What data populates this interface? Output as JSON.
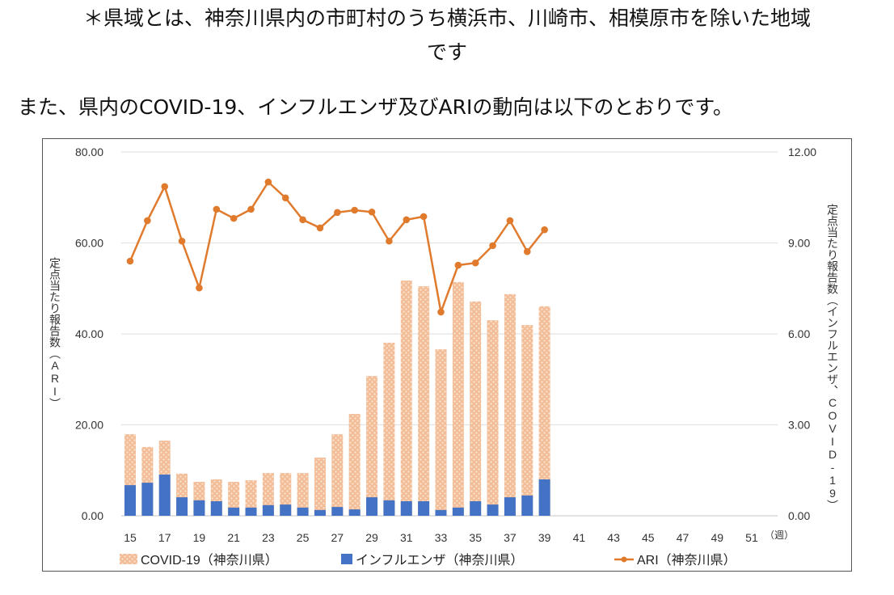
{
  "notes": {
    "line1": "＊県域とは、神奈川県内の市町村のうち横浜市、川崎市、相模原市を除いた地域",
    "line2": "です",
    "intro": "また、県内のCOVID-19、インフルエンザ及びARIの動向は以下のとおりです。"
  },
  "chart_data": {
    "type": "bar+line",
    "x": [
      15,
      16,
      17,
      18,
      19,
      20,
      21,
      22,
      23,
      24,
      25,
      26,
      27,
      28,
      29,
      30,
      31,
      32,
      33,
      34,
      35,
      36,
      37,
      38,
      39
    ],
    "x_ticks": [
      "15",
      "17",
      "19",
      "21",
      "23",
      "25",
      "27",
      "29",
      "31",
      "33",
      "35",
      "37",
      "39",
      "41",
      "43",
      "45",
      "47",
      "49",
      "51"
    ],
    "x_unit": "（週）",
    "xlim": [
      15,
      51
    ],
    "ylabel_left": "定点当たり報告数（ARI）",
    "ylabel_right": "定点当たり報告数（インフルエンザ、COVID-19）",
    "ylim_left": [
      0,
      80
    ],
    "ylim_right": [
      0,
      12
    ],
    "yticks_left": [
      "0.00",
      "20.00",
      "40.00",
      "60.00",
      "80.00"
    ],
    "yticks_right": [
      "0.00",
      "3.00",
      "6.00",
      "9.00",
      "12.00"
    ],
    "grid": true,
    "legend_position": "bottom",
    "series": [
      {
        "name": "COVID-19（神奈川県）",
        "type": "bar",
        "axis": "right",
        "color": "#f0b58c",
        "values": [
          2.69,
          2.27,
          2.48,
          1.39,
          1.12,
          1.2,
          1.12,
          1.17,
          1.41,
          1.41,
          1.41,
          1.92,
          2.69,
          3.36,
          4.61,
          5.71,
          7.76,
          7.57,
          5.49,
          7.71,
          7.07,
          6.45,
          7.31,
          6.29,
          6.91
        ]
      },
      {
        "name": "インフルエンザ（神奈川県）",
        "type": "bar",
        "axis": "right",
        "color": "#4472c4",
        "values": [
          1.01,
          1.09,
          1.36,
          0.61,
          0.51,
          0.48,
          0.27,
          0.27,
          0.35,
          0.37,
          0.27,
          0.19,
          0.29,
          0.21,
          0.61,
          0.51,
          0.48,
          0.48,
          0.19,
          0.27,
          0.48,
          0.37,
          0.61,
          0.67,
          1.2
        ]
      },
      {
        "name": "ARI（神奈川県）",
        "type": "line",
        "axis": "left",
        "color": "#e07b2e",
        "values": [
          56.0,
          64.9,
          72.4,
          60.4,
          50.1,
          67.4,
          65.4,
          67.4,
          73.4,
          69.9,
          65.1,
          63.3,
          66.7,
          67.2,
          66.8,
          60.4,
          65.1,
          65.8,
          44.8,
          55.1,
          55.6,
          59.4,
          64.9,
          58.1,
          62.9
        ]
      }
    ]
  }
}
